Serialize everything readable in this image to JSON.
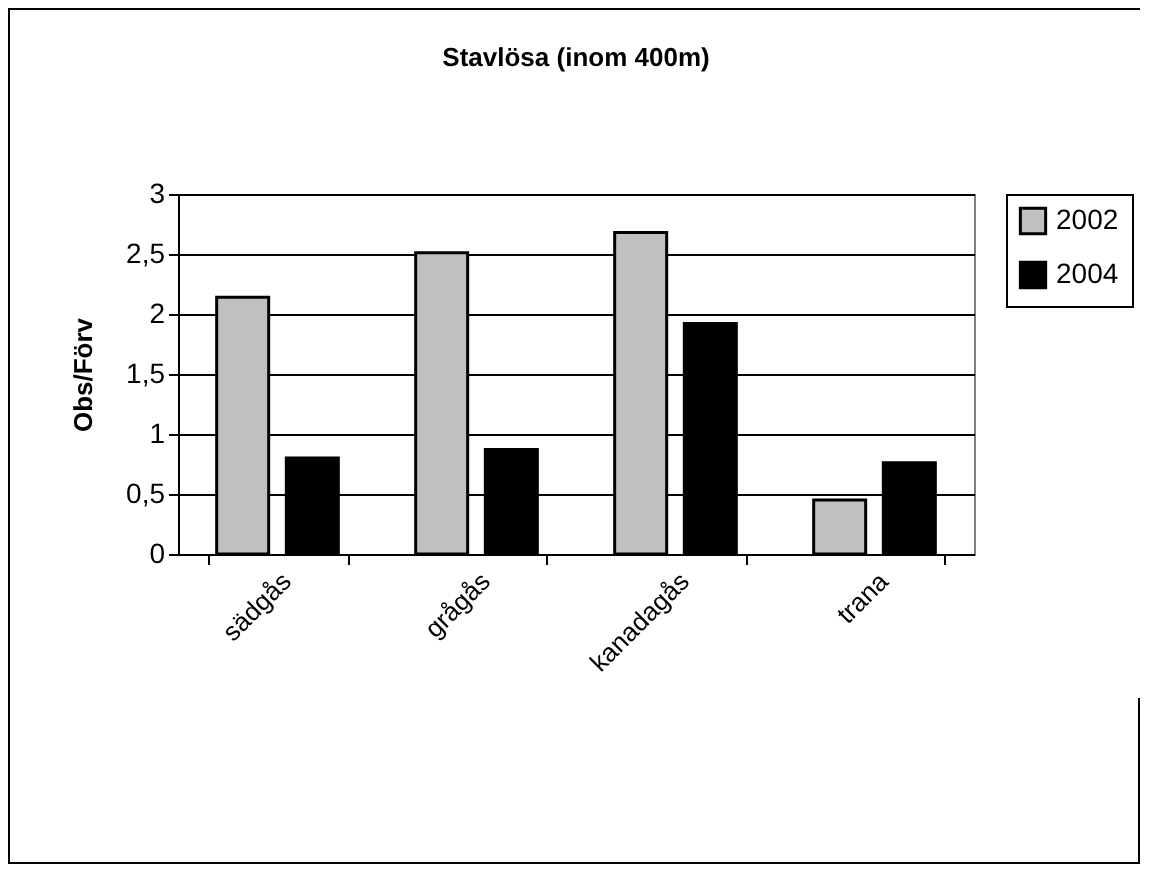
{
  "chart_data": {
    "type": "bar",
    "title": "Stavlösa (inom 400m)",
    "ylabel": "Obs/Förv",
    "categories": [
      "sädgås",
      "grågås",
      "kanadagås",
      "trana"
    ],
    "series": [
      {
        "name": "2002",
        "color": "#c0c0c0",
        "values": [
          2.14,
          2.51,
          2.68,
          0.45
        ]
      },
      {
        "name": "2004",
        "color": "#000000",
        "values": [
          0.8,
          0.87,
          1.92,
          0.76
        ]
      }
    ],
    "ylim": [
      0,
      3
    ],
    "yticks": [
      0,
      {
        "value": 0.5,
        "label": "0,5"
      },
      1,
      {
        "value": 1.5,
        "label": "1,5"
      },
      2,
      {
        "value": 2.5,
        "label": "2,5"
      },
      3
    ],
    "grid": "y",
    "legend": "right"
  }
}
